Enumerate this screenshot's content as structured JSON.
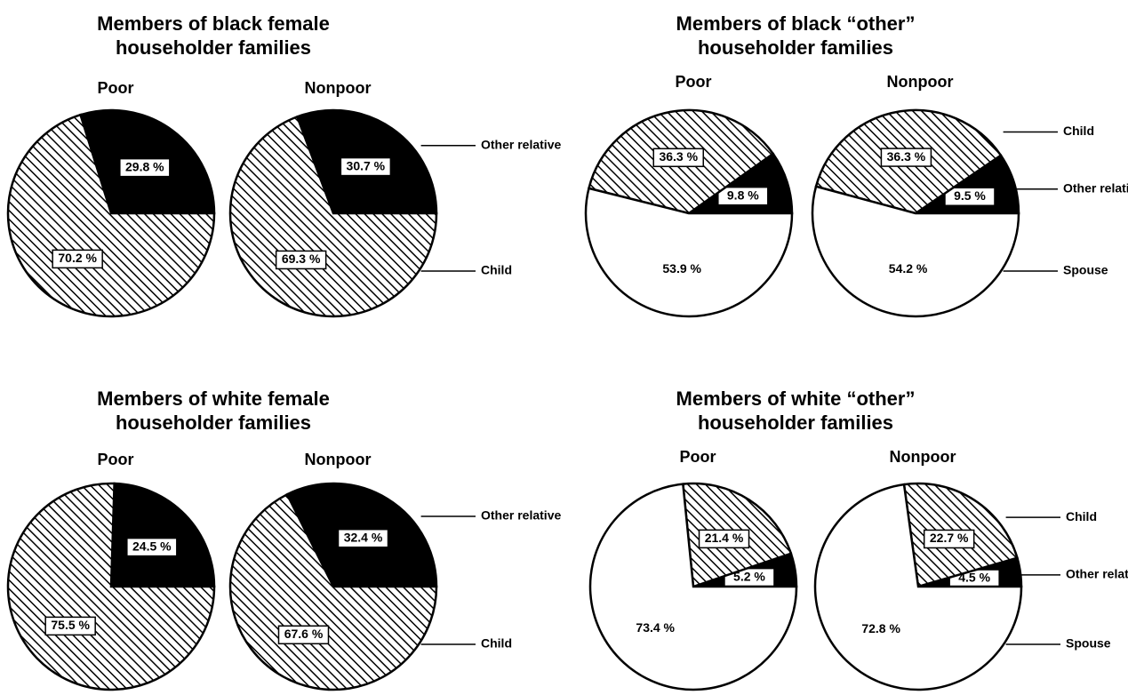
{
  "chart_data": [
    {
      "type": "pie",
      "title_lines": [
        "Members of black female",
        "householder families"
      ],
      "categories": [
        "Other relative",
        "Child"
      ],
      "fills": [
        "black",
        "hatch"
      ],
      "series": [
        {
          "name": "Poor",
          "values": [
            29.8,
            70.2
          ],
          "value_labels": [
            "29.8 %",
            "70.2 %"
          ]
        },
        {
          "name": "Nonpoor",
          "values": [
            30.7,
            69.3
          ],
          "value_labels": [
            "30.7 %",
            "69.3 %"
          ]
        }
      ]
    },
    {
      "type": "pie",
      "title_lines": [
        "Members of black “other”",
        "householder families"
      ],
      "categories": [
        "Other relative",
        "Child",
        "Spouse"
      ],
      "fills": [
        "black",
        "hatch",
        "white"
      ],
      "series": [
        {
          "name": "Poor",
          "values": [
            9.8,
            36.3,
            53.9
          ],
          "value_labels": [
            "9.8 %",
            "36.3 %",
            "53.9 %"
          ]
        },
        {
          "name": "Nonpoor",
          "values": [
            9.5,
            36.3,
            54.2
          ],
          "value_labels": [
            "9.5 %",
            "36.3 %",
            "54.2 %"
          ]
        }
      ]
    },
    {
      "type": "pie",
      "title_lines": [
        "Members of white female",
        "householder families"
      ],
      "categories": [
        "Other relative",
        "Child"
      ],
      "fills": [
        "black",
        "hatch"
      ],
      "series": [
        {
          "name": "Poor",
          "values": [
            24.5,
            75.5
          ],
          "value_labels": [
            "24.5 %",
            "75.5 %"
          ]
        },
        {
          "name": "Nonpoor",
          "values": [
            32.4,
            67.6
          ],
          "value_labels": [
            "32.4 %",
            "67.6 %"
          ]
        }
      ]
    },
    {
      "type": "pie",
      "title_lines": [
        "Members of white “other”",
        "householder families"
      ],
      "categories": [
        "Other relative",
        "Child",
        "Spouse"
      ],
      "fills": [
        "black",
        "hatch",
        "white"
      ],
      "series": [
        {
          "name": "Poor",
          "values": [
            5.2,
            21.4,
            73.4
          ],
          "value_labels": [
            "5.2 %",
            "21.4 %",
            "73.4 %"
          ]
        },
        {
          "name": "Nonpoor",
          "values": [
            4.5,
            22.7,
            72.8
          ],
          "value_labels": [
            "4.5 %",
            "22.7 %",
            "72.8 %"
          ]
        }
      ]
    }
  ]
}
